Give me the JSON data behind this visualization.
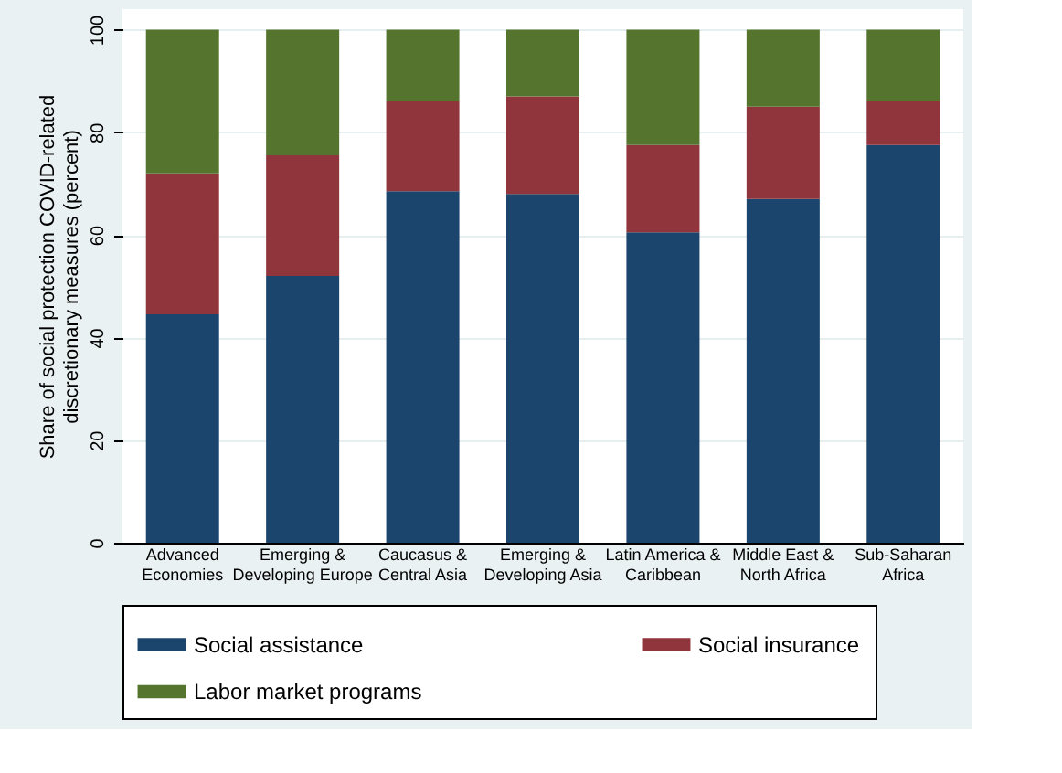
{
  "chart_data": {
    "type": "bar",
    "stacked": true,
    "ylabel": "Share of social protection COVID-related\ndiscretionary measures (percent)",
    "categories": [
      "Advanced\nEconomies",
      "Emerging &\nDeveloping Europe",
      "Caucasus &\nCentral Asia",
      "Emerging &\nDeveloping Asia",
      "Latin America &\nCaribbean",
      "Middle East &\nNorth Africa",
      "Sub-Saharan\nAfrica"
    ],
    "series": [
      {
        "name": "Social assistance",
        "color": "#1b456d",
        "values": [
          44.5,
          52,
          68.5,
          68,
          60.5,
          67,
          77.5
        ]
      },
      {
        "name": "Social insurance",
        "color": "#90353b",
        "values": [
          27.5,
          23.5,
          17.5,
          19,
          17,
          18,
          8.5
        ]
      },
      {
        "name": "Labor market programs",
        "color": "#55752f",
        "values": [
          28,
          24.5,
          14,
          13,
          22.5,
          15,
          14
        ]
      }
    ],
    "ylim": [
      0,
      104
    ],
    "yticks": [
      0,
      20,
      40,
      60,
      80,
      100
    ],
    "grid": "y",
    "legend": "bottom"
  }
}
